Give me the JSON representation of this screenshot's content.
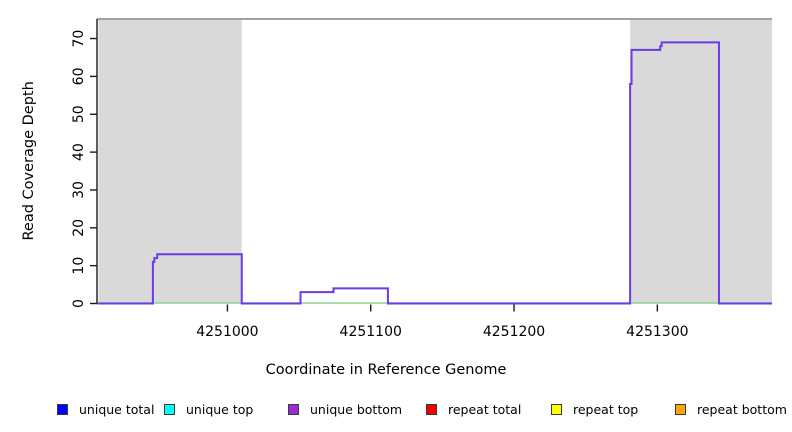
{
  "chart_data": {
    "type": "area",
    "title": "",
    "xlabel": "Coordinate in Reference Genome",
    "ylabel": "Read Coverage Depth",
    "xlim": [
      4250909,
      4251380
    ],
    "ylim": [
      0,
      75
    ],
    "xticks": [
      4251000,
      4251100,
      4251200,
      4251300
    ],
    "yticks": [
      0,
      10,
      20,
      30,
      40,
      50,
      60,
      70
    ],
    "grid": false,
    "legend_position": "bottom",
    "shade_color": "#d9d9d9",
    "top_border_color": "#848484",
    "axis_color": "#1a1a1a",
    "shaded_regions": [
      {
        "from": 4250910,
        "to": 4251010
      },
      {
        "from": 4251281,
        "to": 4251380
      }
    ],
    "baseline_series": {
      "name": "zero-coverage baseline",
      "color": "#8fd18f",
      "value": 0
    },
    "series": [
      {
        "name": "unique bottom coverage",
        "color": "#6b3be8",
        "steps": [
          [
            4250909,
            0
          ],
          [
            4250948,
            11
          ],
          [
            4250949,
            12
          ],
          [
            4250951,
            13
          ],
          [
            4251010,
            0
          ],
          [
            4251051,
            3
          ],
          [
            4251074,
            4
          ],
          [
            4251112,
            0
          ],
          [
            4251281,
            58
          ],
          [
            4251282,
            67
          ],
          [
            4251302,
            68
          ],
          [
            4251303,
            69
          ],
          [
            4251343,
            0
          ]
        ]
      }
    ],
    "legend": [
      {
        "label": "unique total",
        "color": "#0000ff"
      },
      {
        "label": "unique top",
        "color": "#00ffff"
      },
      {
        "label": "unique bottom",
        "color": "#9a2cd8"
      },
      {
        "label": "repeat total",
        "color": "#ee0000"
      },
      {
        "label": "repeat top",
        "color": "#ffff00"
      },
      {
        "label": "repeat bottom",
        "color": "#ffa500"
      }
    ]
  }
}
